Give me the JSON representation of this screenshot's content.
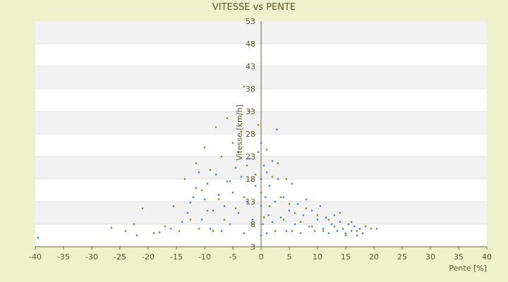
{
  "chart_data": {
    "type": "scatter",
    "title": "VITESSE vs PENTE",
    "xlabel": "Pente [%]",
    "ylabel": "Vitesse [km/h]",
    "xlim": [
      -40,
      40
    ],
    "ylim": [
      3,
      53
    ],
    "x_ticks": [
      "-40",
      "-35",
      "-30",
      "-25",
      "-20",
      "-15",
      "-10",
      "-5",
      "0",
      "5",
      "10",
      "15",
      "20",
      "25",
      "30",
      "35",
      "40"
    ],
    "y_ticks": [
      "3",
      "8",
      "13",
      "18",
      "23",
      "28",
      "33",
      "38",
      "43",
      "48",
      "53"
    ],
    "grid": "horizontal alternating bands",
    "legend": "none",
    "series": [
      {
        "color": "#3a8ad6",
        "points": [
          [
            -39.5,
            5
          ],
          [
            -22.0,
            5.5
          ],
          [
            -18.0,
            6.2
          ],
          [
            -16.0,
            7.0
          ],
          [
            -14.0,
            8.5
          ],
          [
            -13.0,
            10.5
          ],
          [
            -12.5,
            12.8
          ],
          [
            -12.0,
            14.0
          ],
          [
            -11.5,
            16.0
          ],
          [
            -11.0,
            19.5
          ],
          [
            -10.5,
            9.0
          ],
          [
            -10.0,
            13.5
          ],
          [
            -9.5,
            17.0
          ],
          [
            -9.0,
            7.0
          ],
          [
            -8.5,
            11.0
          ],
          [
            -8.0,
            19.0
          ],
          [
            -7.5,
            14.5
          ],
          [
            -7.0,
            6.5
          ],
          [
            -6.5,
            12.0
          ],
          [
            -6.0,
            17.5
          ],
          [
            -5.5,
            8.0
          ],
          [
            -5.0,
            15.0
          ],
          [
            -4.5,
            20.5
          ],
          [
            -4.0,
            10.5
          ],
          [
            -3.5,
            18.5
          ],
          [
            -3.0,
            6.0
          ],
          [
            -2.5,
            13.0
          ],
          [
            -2.0,
            22.5
          ],
          [
            -1.5,
            9.0
          ],
          [
            -1.0,
            16.5
          ],
          [
            -0.5,
            24.0
          ],
          [
            0.0,
            5.5
          ],
          [
            0.0,
            12.0
          ],
          [
            0.0,
            18.0
          ],
          [
            0.0,
            26.0
          ],
          [
            0.3,
            8.0
          ],
          [
            0.5,
            21.0
          ],
          [
            0.8,
            14.0
          ],
          [
            1.0,
            19.5
          ],
          [
            1.0,
            6.0
          ],
          [
            1.3,
            10.0
          ],
          [
            1.5,
            16.5
          ],
          [
            2.0,
            8.5
          ],
          [
            2.0,
            22.0
          ],
          [
            2.5,
            13.0
          ],
          [
            2.8,
            29.0
          ],
          [
            3.0,
            18.0
          ],
          [
            3.5,
            9.5
          ],
          [
            4.0,
            14.0
          ],
          [
            4.5,
            6.5
          ],
          [
            5.0,
            11.0
          ],
          [
            5.5,
            17.0
          ],
          [
            6.0,
            8.0
          ],
          [
            6.5,
            12.5
          ],
          [
            7.0,
            6.0
          ],
          [
            7.5,
            10.0
          ],
          [
            8.0,
            13.5
          ],
          [
            8.5,
            7.5
          ],
          [
            9.0,
            11.0
          ],
          [
            9.5,
            6.5
          ],
          [
            10.0,
            9.0
          ],
          [
            10.5,
            12.0
          ],
          [
            11.0,
            7.0
          ],
          [
            11.5,
            9.5
          ],
          [
            12.0,
            6.0
          ],
          [
            12.5,
            8.0
          ],
          [
            13.0,
            10.0
          ],
          [
            13.5,
            6.5
          ],
          [
            14.0,
            8.5
          ],
          [
            14.5,
            7.0
          ],
          [
            15.0,
            5.5
          ],
          [
            15.5,
            8.0
          ],
          [
            16.0,
            6.5
          ],
          [
            16.5,
            7.5
          ],
          [
            17.0,
            5.5
          ],
          [
            17.5,
            7.0
          ],
          [
            18.0,
            6.0
          ],
          [
            20.5,
            7.0
          ]
        ]
      },
      {
        "color": "#8a8a1e",
        "points": [
          [
            -26.5,
            7.2
          ],
          [
            -24.0,
            6.5
          ],
          [
            -22.5,
            8.0
          ],
          [
            -21.0,
            11.5
          ],
          [
            -19.0,
            6.0
          ],
          [
            -17.0,
            7.5
          ],
          [
            -15.5,
            12.0
          ],
          [
            -14.5,
            6.5
          ],
          [
            -13.5,
            18.0
          ],
          [
            -12.5,
            9.0
          ],
          [
            -11.5,
            21.5
          ],
          [
            -11.0,
            7.0
          ],
          [
            -10.5,
            15.5
          ],
          [
            -10.0,
            25.0
          ],
          [
            -9.5,
            11.0
          ],
          [
            -9.0,
            20.0
          ],
          [
            -8.5,
            6.5
          ],
          [
            -8.0,
            29.5
          ],
          [
            -7.5,
            13.5
          ],
          [
            -7.0,
            23.0
          ],
          [
            -6.5,
            9.0
          ],
          [
            -6.0,
            31.5
          ],
          [
            -5.5,
            17.5
          ],
          [
            -5.0,
            26.0
          ],
          [
            -4.5,
            11.5
          ],
          [
            -4.0,
            24.0
          ],
          [
            -3.5,
            28.5
          ],
          [
            -3.0,
            38.5
          ],
          [
            -3.0,
            14.0
          ],
          [
            -2.5,
            21.0
          ],
          [
            -2.0,
            33.0
          ],
          [
            -1.5,
            8.0
          ],
          [
            -1.0,
            19.0
          ],
          [
            -0.5,
            30.0
          ],
          [
            0.0,
            15.0
          ],
          [
            0.5,
            9.5
          ],
          [
            1.0,
            24.5
          ],
          [
            1.5,
            12.0
          ],
          [
            2.0,
            18.5
          ],
          [
            2.5,
            6.5
          ],
          [
            3.0,
            21.5
          ],
          [
            3.5,
            14.0
          ],
          [
            4.0,
            9.0
          ],
          [
            4.5,
            18.0
          ],
          [
            5.0,
            12.5
          ],
          [
            5.5,
            6.5
          ],
          [
            6.0,
            10.5
          ],
          [
            7.0,
            8.5
          ],
          [
            8.0,
            11.5
          ],
          [
            9.0,
            7.5
          ],
          [
            10.0,
            10.0
          ],
          [
            11.0,
            6.5
          ],
          [
            12.0,
            9.0
          ],
          [
            13.0,
            7.5
          ],
          [
            14.0,
            10.5
          ],
          [
            15.0,
            6.0
          ],
          [
            16.0,
            8.5
          ],
          [
            17.0,
            6.5
          ],
          [
            18.5,
            7.5
          ],
          [
            19.5,
            7.0
          ]
        ]
      }
    ]
  }
}
